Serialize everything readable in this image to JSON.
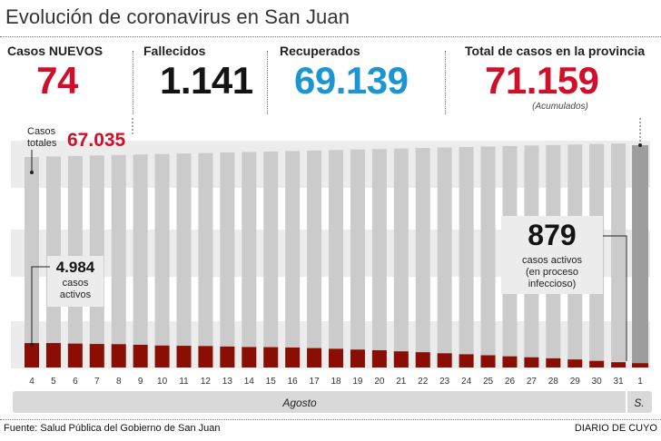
{
  "header": {
    "title": "Evolución de coronavirus en San Juan"
  },
  "stats": {
    "nuevos": {
      "label": "Casos NUEVOS",
      "value": "74"
    },
    "fallecidos": {
      "label": "Fallecidos",
      "value": "1.141"
    },
    "recuperados": {
      "label": "Recuperados",
      "value": "69.139"
    },
    "total": {
      "label": "Total de casos en la provincia",
      "value": "71.159",
      "note": "(Acumulados)"
    }
  },
  "colors": {
    "red": "#d0102a",
    "blue": "#1e95d3",
    "black": "#141414",
    "bar_gray": "#cbcbcb",
    "bar_last": "#9d9d9d",
    "active": "#8b0e04",
    "band": "#ececec",
    "month_band": "#d9d9d9"
  },
  "chart_data": {
    "type": "bar",
    "categories": [
      "4",
      "5",
      "6",
      "7",
      "8",
      "9",
      "10",
      "11",
      "12",
      "13",
      "14",
      "15",
      "16",
      "17",
      "18",
      "19",
      "20",
      "21",
      "22",
      "23",
      "24",
      "25",
      "26",
      "27",
      "28",
      "29",
      "30",
      "31",
      "1"
    ],
    "series": [
      {
        "name": "Casos totales",
        "values": [
          67035,
          67200,
          67380,
          67540,
          67700,
          67880,
          68050,
          68220,
          68390,
          68570,
          68750,
          68920,
          69090,
          69260,
          69430,
          69600,
          69770,
          69940,
          70110,
          70280,
          70450,
          70620,
          70790,
          70960,
          71130,
          71300,
          71470,
          71640,
          71159
        ]
      },
      {
        "name": "casos activos",
        "values": [
          4984,
          4990,
          4880,
          4800,
          4760,
          4640,
          4480,
          4430,
          4380,
          4280,
          4180,
          4150,
          4080,
          3960,
          3820,
          3660,
          3520,
          3300,
          3120,
          2900,
          2700,
          2500,
          2280,
          2080,
          1870,
          1640,
          1350,
          1080,
          879
        ]
      }
    ],
    "months": [
      {
        "label": "Agosto"
      },
      {
        "label": "S."
      }
    ],
    "annotations": {
      "total_label": "Casos totales",
      "total_value": "67.035",
      "first_active_value": "4.984",
      "first_active_label": "casos activos",
      "last_active_value": "879",
      "last_active_label": "casos activos (en proceso infeccioso)"
    }
  },
  "footer": {
    "source": "Fuente: Salud Pública del Gobierno de San Juan",
    "brand": "DIARIO DE CUYO"
  }
}
